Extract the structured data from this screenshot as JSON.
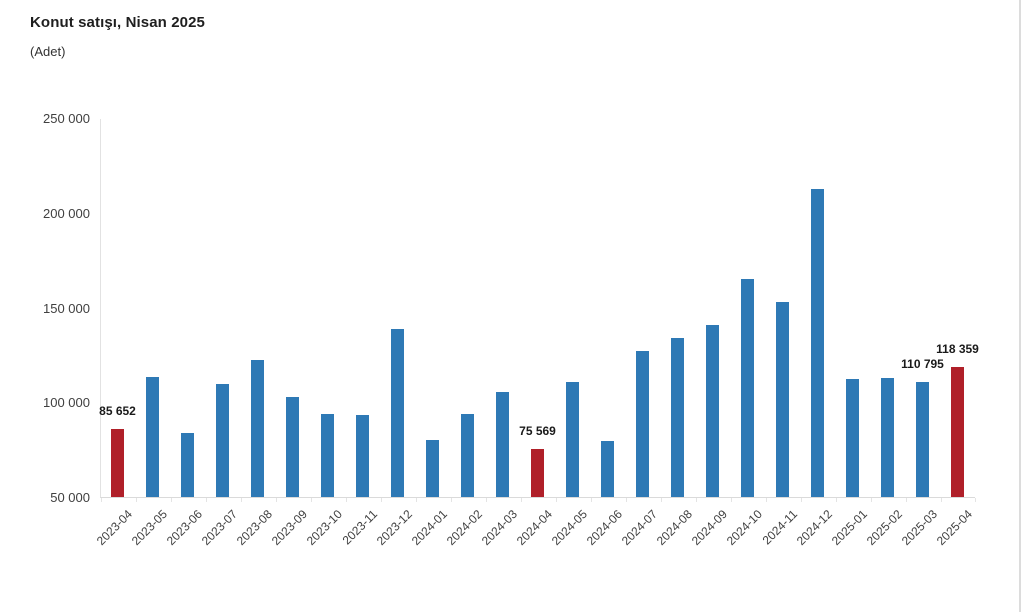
{
  "header": {
    "title": "Konut satışı, Nisan 2025",
    "subtitle": "(Adet)"
  },
  "chart_data": {
    "type": "bar",
    "title": "Konut satışı, Nisan 2025",
    "unit_label": "(Adet)",
    "xlabel": "",
    "ylabel": "",
    "ylim": [
      50000,
      250000
    ],
    "grid": false,
    "legend": false,
    "y_tick_labels_top_to_bottom": [
      "250 000",
      "200 000",
      "150 000",
      "100 000",
      "50 000"
    ],
    "categories": [
      "2023-04",
      "2023-05",
      "2023-06",
      "2023-07",
      "2023-08",
      "2023-09",
      "2023-10",
      "2023-11",
      "2023-12",
      "2024-01",
      "2024-02",
      "2024-03",
      "2024-04",
      "2024-05",
      "2024-06",
      "2024-07",
      "2024-08",
      "2024-09",
      "2024-10",
      "2024-11",
      "2024-12",
      "2025-01",
      "2025-02",
      "2025-03",
      "2025-04"
    ],
    "values": [
      85652,
      113490,
      83636,
      109548,
      122091,
      102656,
      93761,
      93514,
      138577,
      80308,
      93902,
      105476,
      75569,
      110588,
      79313,
      127088,
      134155,
      140919,
      165138,
      153014,
      212637,
      112173,
      112818,
      110795,
      118359
    ],
    "highlighted_indices": [
      0,
      12,
      24
    ],
    "point_labels": {
      "0": "85 652",
      "12": "75 569",
      "23": "110 795",
      "24": "118 359"
    },
    "colors": {
      "bar": "#2e79b5",
      "highlight": "#b02029",
      "axis_line": "#dedede",
      "tick_text": "#404040",
      "label_text": "#1a1a1a"
    }
  }
}
